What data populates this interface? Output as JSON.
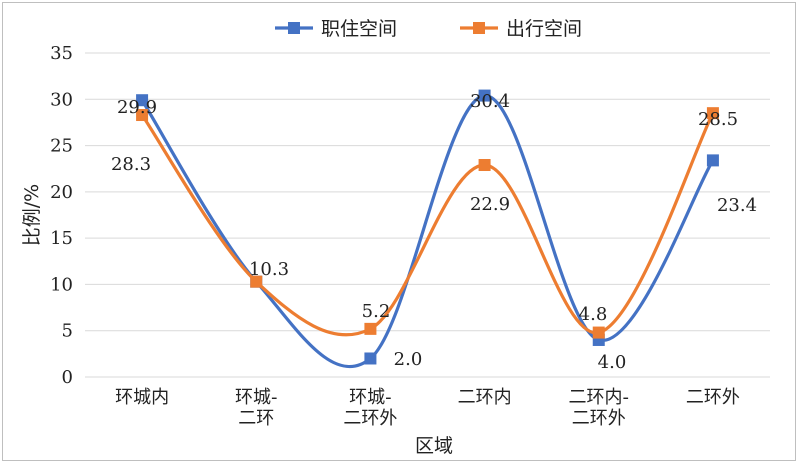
{
  "chart_data": {
    "type": "line",
    "smooth": true,
    "categories": [
      [
        "环城内"
      ],
      [
        "环城-",
        "二环"
      ],
      [
        "环城-",
        "二环外"
      ],
      [
        "二环内"
      ],
      [
        "二环内-",
        "二环外"
      ],
      [
        "二环外"
      ]
    ],
    "series": [
      {
        "name": "职住空间",
        "values": [
          29.9,
          10.3,
          2.0,
          30.4,
          4.0,
          23.4
        ],
        "color": "#4472c4"
      },
      {
        "name": "出行空间",
        "values": [
          28.3,
          10.3,
          5.2,
          22.9,
          4.8,
          28.5
        ],
        "color": "#ed7d31"
      }
    ],
    "data_labels": [
      {
        "text": "29.9"
      },
      {
        "text": "28.3"
      },
      {
        "text": "10.3"
      },
      {
        "text": "5.2"
      },
      {
        "text": "2.0"
      },
      {
        "text": "30.4"
      },
      {
        "text": "22.9"
      },
      {
        "text": "4.8"
      },
      {
        "text": "4.0"
      },
      {
        "text": "28.5"
      },
      {
        "text": "23.4"
      }
    ],
    "xlabel": "区域",
    "ylabel": "比例/%",
    "ylim": [
      0,
      35
    ],
    "yticks": [
      0,
      5,
      10,
      15,
      20,
      25,
      30,
      35
    ],
    "grid": "horizontal",
    "legend_position": "top-center"
  }
}
